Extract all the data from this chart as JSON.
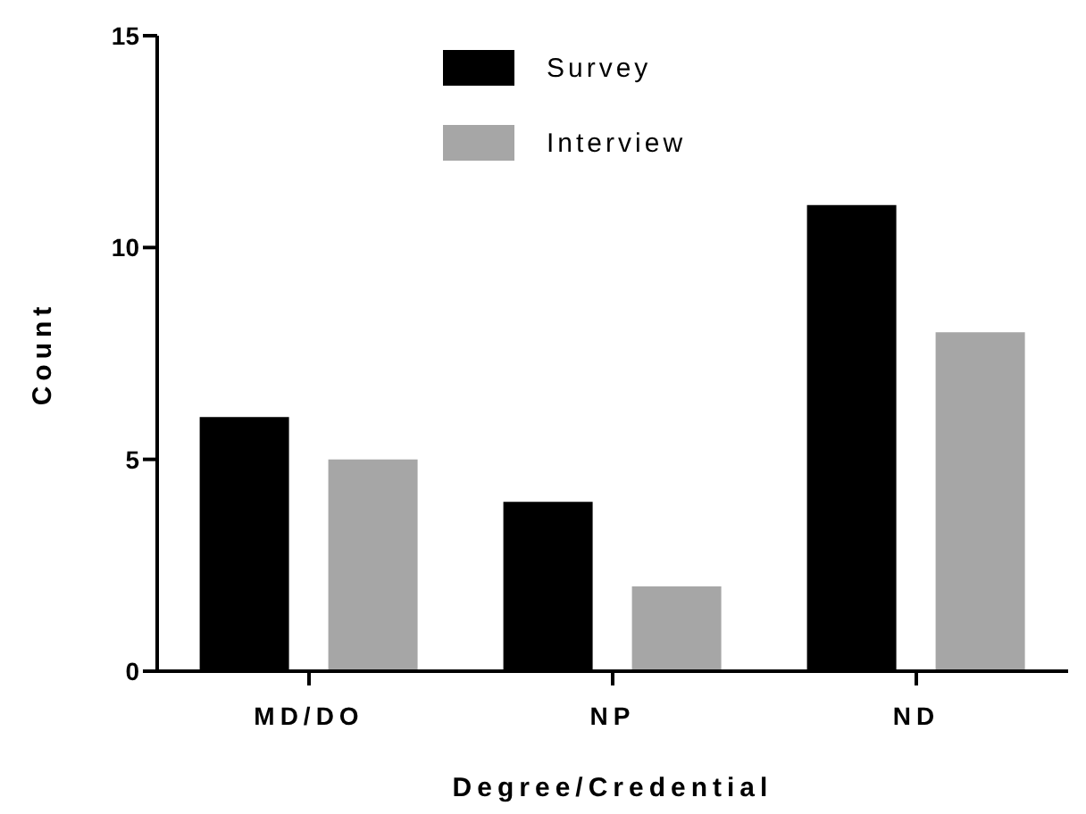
{
  "chart_data": {
    "type": "bar",
    "xlabel": "Degree/Credential",
    "ylabel": "Count",
    "categories": [
      "MD/DO",
      "NP",
      "ND"
    ],
    "series": [
      {
        "name": "Survey",
        "color": "#000000",
        "values": [
          6,
          4,
          11
        ]
      },
      {
        "name": "Interview",
        "color": "#a6a6a6",
        "values": [
          5,
          2,
          8
        ]
      }
    ],
    "ylim": [
      0,
      15
    ],
    "yticks": [
      0,
      5,
      10,
      15
    ],
    "grid": false,
    "legend": "top"
  }
}
